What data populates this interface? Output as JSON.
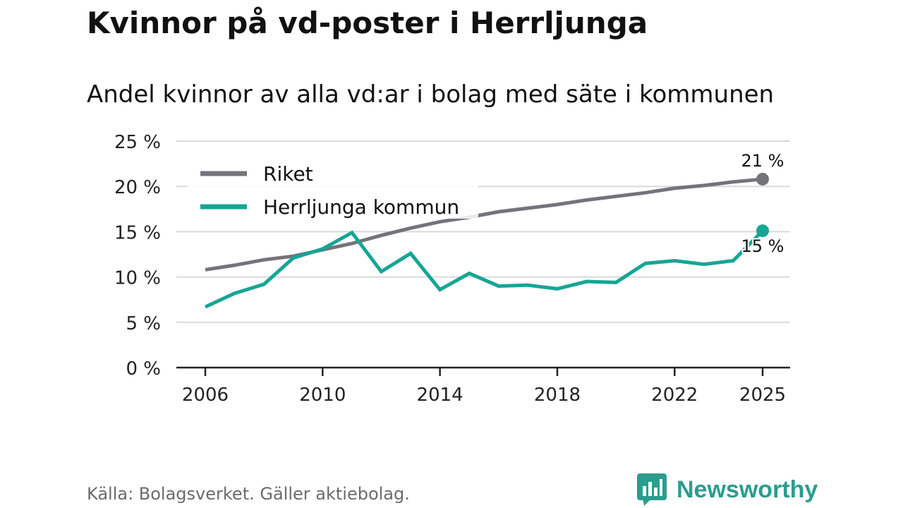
{
  "title": "Kvinnor på vd-poster i Herrljunga",
  "subtitle": "Andel kvinnor av alla vd:ar i bolag med säte i kommunen",
  "source": "Källa: Bolagsverket. Gäller aktiebolag.",
  "brand": {
    "name": "Newsworthy",
    "icon": "newsworthy-logo-icon"
  },
  "colors": {
    "riket": "#74737a",
    "herrljunga": "#16a596",
    "grid": "#d9d9d9",
    "axis": "#222222"
  },
  "chart_data": {
    "type": "line",
    "title": "Kvinnor på vd-poster i Herrljunga",
    "xlabel": "",
    "ylabel": "",
    "x": [
      2006,
      2007,
      2008,
      2009,
      2010,
      2011,
      2012,
      2013,
      2014,
      2015,
      2016,
      2017,
      2018,
      2019,
      2020,
      2021,
      2022,
      2023,
      2024,
      2025
    ],
    "xlim": [
      2006,
      2025
    ],
    "ylim": [
      0,
      25
    ],
    "x_ticks": [
      2006,
      2010,
      2014,
      2018,
      2022,
      2025
    ],
    "x_tick_labels": [
      "2006",
      "2010",
      "2014",
      "2018",
      "2022",
      "2025"
    ],
    "y_ticks": [
      0,
      5,
      10,
      15,
      20,
      25
    ],
    "y_tick_labels": [
      "0 %",
      "5 %",
      "10 %",
      "15 %",
      "20 %",
      "25 %"
    ],
    "grid": true,
    "legend_position": "top-left",
    "series": [
      {
        "name": "Riket",
        "color": "#74737a",
        "values": [
          10.8,
          11.3,
          11.9,
          12.3,
          13.0,
          13.7,
          14.6,
          15.4,
          16.1,
          16.6,
          17.2,
          17.6,
          18.0,
          18.5,
          18.9,
          19.3,
          19.8,
          20.1,
          20.5,
          20.8
        ],
        "end_label": "21 %"
      },
      {
        "name": "Herrljunga kommun",
        "color": "#16a596",
        "values": [
          6.7,
          8.2,
          9.2,
          12.1,
          13.1,
          14.9,
          10.6,
          12.6,
          8.6,
          10.4,
          9.0,
          9.1,
          8.7,
          9.5,
          9.4,
          11.5,
          11.8,
          11.4,
          11.8,
          15.1
        ],
        "end_label": "15 %"
      }
    ]
  }
}
